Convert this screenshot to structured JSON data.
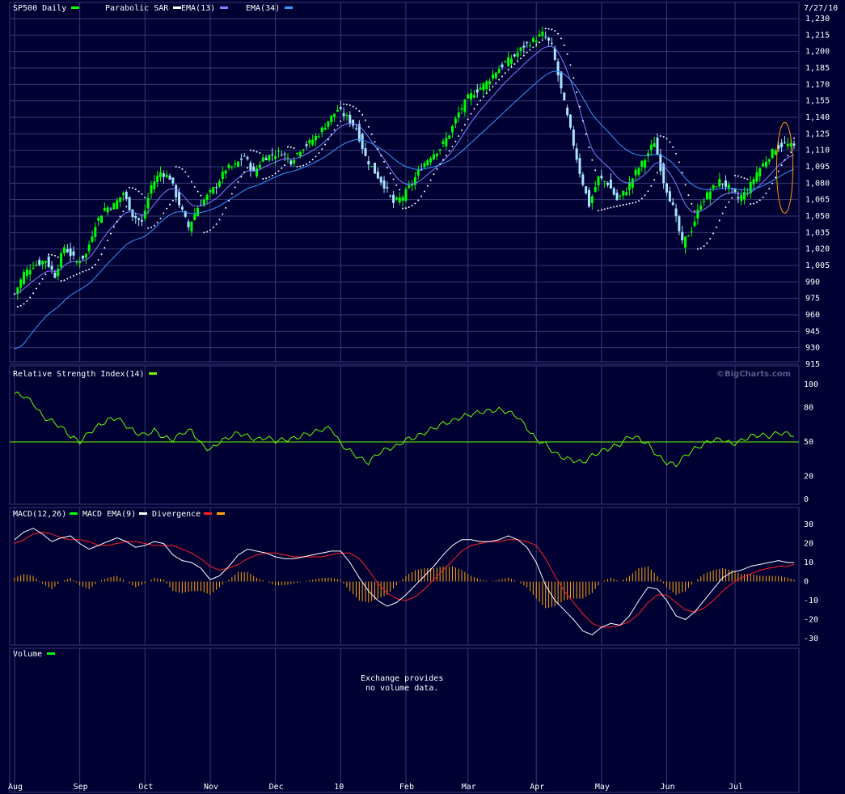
{
  "top_date": "7/27/10",
  "watermark": "©BigCharts.com",
  "volume_note_line1": "Exchange provides",
  "volume_note_line2": "no volume data.",
  "colors": {
    "background": "#000033",
    "grid": "#3a3a78",
    "up_candle": "#00ff00",
    "down_candle": "#a8e6ff",
    "sar": "#ffffff",
    "ema13": "#7f7fff",
    "ema34": "#3399ff",
    "rsi": "#66ff00",
    "macd": "#ffffff",
    "macd_signal": "#ff2020",
    "divergence": "#ffaa00",
    "circle": "#ff9900"
  },
  "chart_data": [
    {
      "type": "candlestick",
      "panel": "price",
      "title": "SP500 Daily",
      "legend": [
        {
          "name": "SP500 Daily",
          "color": "#00ff00"
        },
        {
          "name": "Parabolic SAR",
          "color": "#ffffff"
        },
        {
          "name": "EMA(13)",
          "color": "#7f7fff"
        },
        {
          "name": "EMA(34)",
          "color": "#3399ff"
        }
      ],
      "ylim": [
        915,
        1230
      ],
      "y_ticks": [
        "1,230",
        "1,215",
        "1,200",
        "1,185",
        "1,170",
        "1,155",
        "1,140",
        "1,125",
        "1,110",
        "1,095",
        "1,080",
        "1,065",
        "1,050",
        "1,035",
        "1,020",
        "1,005",
        "990",
        "975",
        "960",
        "945",
        "930",
        "915"
      ],
      "x_ticks": [
        "Aug",
        "Sep",
        "Oct",
        "Nov",
        "Dec",
        "10",
        "Feb",
        "Mar",
        "Apr",
        "May",
        "Jun",
        "Jul"
      ],
      "x_tick_positions": [
        0,
        21,
        42,
        63,
        84,
        105,
        126,
        146,
        168,
        189,
        210,
        232
      ],
      "close_series": {
        "x": [
          0,
          3,
          6,
          10,
          13,
          16,
          20,
          23,
          26,
          29,
          32,
          35,
          38,
          41,
          44,
          47,
          50,
          53,
          56,
          59,
          62,
          65,
          68,
          71,
          74,
          77,
          80,
          83,
          86,
          89,
          92,
          95,
          98,
          101,
          104,
          107,
          110,
          113,
          116,
          119,
          122,
          125,
          128,
          131,
          134,
          137,
          140,
          143,
          146,
          149,
          152,
          155,
          158,
          161,
          164,
          167,
          170,
          173,
          176,
          179,
          182,
          185,
          188,
          191,
          194,
          197,
          200,
          203,
          206,
          209,
          212,
          215,
          218,
          221,
          224,
          227,
          230,
          233,
          236,
          239,
          242,
          245,
          248,
          251
        ],
        "values": [
          979,
          998,
          1005,
          1010,
          996,
          1022,
          1008,
          1015,
          1043,
          1057,
          1060,
          1071,
          1051,
          1044,
          1078,
          1090,
          1085,
          1061,
          1040,
          1058,
          1068,
          1078,
          1093,
          1096,
          1105,
          1089,
          1103,
          1106,
          1108,
          1100,
          1111,
          1117,
          1125,
          1137,
          1147,
          1140,
          1130,
          1104,
          1090,
          1078,
          1062,
          1068,
          1080,
          1095,
          1105,
          1112,
          1125,
          1144,
          1158,
          1165,
          1172,
          1182,
          1190,
          1196,
          1205,
          1210,
          1216,
          1205,
          1165,
          1128,
          1090,
          1060,
          1085,
          1080,
          1065,
          1074,
          1090,
          1102,
          1118,
          1082,
          1058,
          1025,
          1038,
          1062,
          1073,
          1082,
          1076,
          1066,
          1073,
          1090,
          1101,
          1112,
          1116,
          1113
        ]
      },
      "annotation": "ellipse around last sessions"
    },
    {
      "type": "line",
      "panel": "rsi",
      "title": "Relative Strength Index(14)",
      "legend": [
        {
          "name": "Relative Strength Index(14)",
          "color": "#66ff00"
        }
      ],
      "ylim": [
        0,
        100
      ],
      "y_ticks": [
        "100",
        "80",
        "50",
        "20",
        "0"
      ],
      "reference_line": 50,
      "x": [
        0,
        3,
        6,
        9,
        12,
        15,
        18,
        21,
        24,
        27,
        30,
        33,
        36,
        39,
        42,
        45,
        48,
        51,
        54,
        57,
        60,
        63,
        66,
        69,
        72,
        75,
        78,
        81,
        84,
        87,
        90,
        93,
        96,
        99,
        102,
        105,
        108,
        111,
        114,
        117,
        120,
        123,
        126,
        129,
        132,
        135,
        138,
        141,
        144,
        147,
        150,
        153,
        156,
        159,
        162,
        165,
        168,
        171,
        174,
        177,
        180,
        183,
        186,
        189,
        192,
        195,
        198,
        201,
        204,
        207,
        210,
        213,
        216,
        219,
        222,
        225,
        228,
        231,
        234,
        237,
        240,
        243,
        246,
        249,
        251
      ],
      "values": [
        92,
        90,
        84,
        72,
        68,
        63,
        55,
        50,
        58,
        64,
        69,
        71,
        64,
        58,
        56,
        60,
        54,
        52,
        58,
        60,
        48,
        43,
        50,
        54,
        58,
        55,
        52,
        54,
        51,
        52,
        53,
        56,
        58,
        61,
        62,
        48,
        42,
        36,
        32,
        40,
        44,
        46,
        52,
        54,
        58,
        62,
        66,
        68,
        72,
        74,
        76,
        77,
        78,
        76,
        72,
        62,
        52,
        48,
        40,
        36,
        34,
        32,
        38,
        42,
        45,
        48,
        55,
        53,
        48,
        38,
        32,
        30,
        38,
        44,
        48,
        52,
        52,
        48,
        51,
        55,
        56,
        55,
        58,
        57,
        56
      ]
    },
    {
      "type": "line",
      "panel": "macd",
      "title": "MACD(12,26)",
      "legend": [
        {
          "name": "MACD(12,26)",
          "color": "#00ff00"
        },
        {
          "name": "MACD EMA(9)",
          "color": "#ffffff"
        },
        {
          "name": "Divergence",
          "color": "#ff2020"
        },
        {
          "name": "",
          "color": "#ffaa00"
        }
      ],
      "ylim": [
        -30,
        30
      ],
      "y_ticks": [
        "30",
        "20",
        "10",
        "0",
        "-10",
        "-20",
        "-30"
      ],
      "x": [
        0,
        3,
        6,
        9,
        12,
        15,
        18,
        21,
        24,
        27,
        30,
        33,
        36,
        39,
        42,
        45,
        48,
        51,
        54,
        57,
        60,
        63,
        66,
        69,
        72,
        75,
        78,
        81,
        84,
        87,
        90,
        93,
        96,
        99,
        102,
        105,
        108,
        111,
        114,
        117,
        120,
        123,
        126,
        129,
        132,
        135,
        138,
        141,
        144,
        147,
        150,
        153,
        156,
        159,
        162,
        165,
        168,
        171,
        174,
        177,
        180,
        183,
        186,
        189,
        192,
        195,
        198,
        201,
        204,
        207,
        210,
        213,
        216,
        219,
        222,
        225,
        228,
        231,
        234,
        237,
        240,
        243,
        246,
        249,
        251
      ],
      "macd": [
        22,
        26,
        28,
        25,
        21,
        23,
        24,
        20,
        17,
        19,
        21,
        23,
        21,
        18,
        19,
        21,
        20,
        14,
        11,
        10,
        7,
        1,
        3,
        8,
        14,
        17,
        16,
        15,
        13,
        12,
        12,
        13,
        14,
        15,
        16,
        16,
        10,
        2,
        -5,
        -10,
        -13,
        -11,
        -7,
        -2,
        3,
        8,
        14,
        19,
        22,
        22,
        21,
        21,
        22,
        24,
        22,
        18,
        10,
        -2,
        -10,
        -15,
        -20,
        -26,
        -28,
        -24,
        -22,
        -23,
        -18,
        -10,
        -3,
        -4,
        -10,
        -18,
        -20,
        -16,
        -10,
        -4,
        2,
        5,
        6,
        8,
        9,
        10,
        11,
        10,
        10
      ],
      "signal": [
        20,
        22,
        25,
        26,
        25,
        23,
        22,
        22,
        21,
        19,
        19,
        20,
        21,
        21,
        20,
        19,
        19,
        19,
        17,
        15,
        12,
        8,
        6,
        7,
        9,
        12,
        14,
        15,
        15,
        14,
        13,
        13,
        13,
        13,
        14,
        15,
        15,
        12,
        6,
        -1,
        -6,
        -9,
        -10,
        -8,
        -4,
        1,
        6,
        11,
        16,
        19,
        20,
        21,
        21,
        22,
        22,
        21,
        19,
        12,
        3,
        -5,
        -11,
        -17,
        -22,
        -24,
        -24,
        -23,
        -21,
        -17,
        -11,
        -7,
        -7,
        -11,
        -15,
        -16,
        -14,
        -10,
        -5,
        -1,
        2,
        4,
        6,
        7,
        8,
        8,
        9
      ]
    },
    {
      "type": "bar",
      "panel": "volume",
      "title": "Volume",
      "legend": [
        {
          "name": "Volume",
          "color": "#00ff00"
        }
      ],
      "values": []
    }
  ]
}
